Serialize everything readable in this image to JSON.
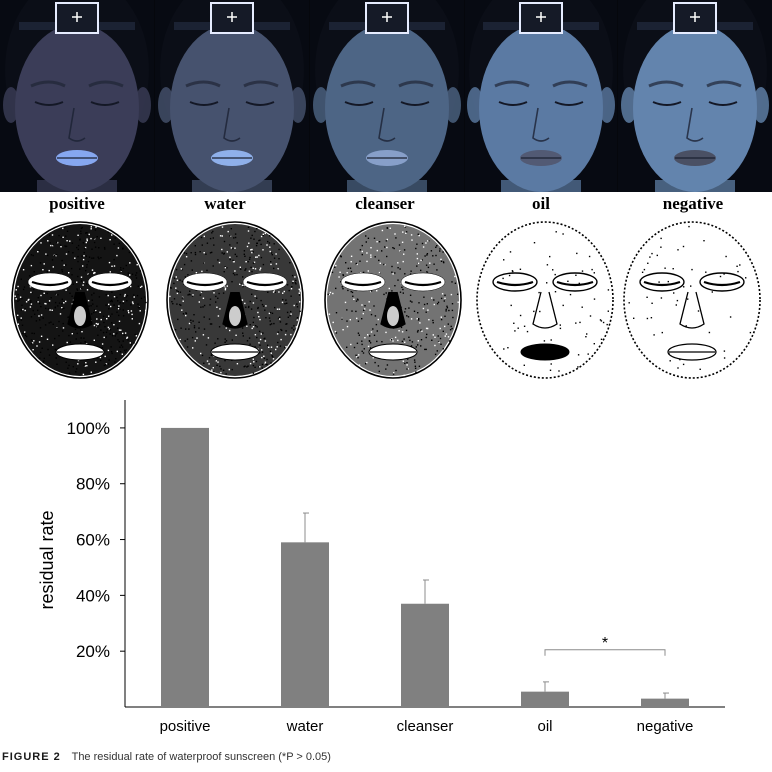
{
  "panels": [
    "positive",
    "water",
    "cleanser",
    "oil",
    "negative"
  ],
  "photo_tints": [
    "#3b3d58",
    "#46526e",
    "#4d6585",
    "#5b7aa3",
    "#6384ad"
  ],
  "photo_lips": [
    "#86a7f0",
    "#8fb0ea",
    "#879fc9",
    "#525a74",
    "#4a5064"
  ],
  "bw_darkness": [
    0.92,
    0.78,
    0.55,
    0.1,
    0.05
  ],
  "chart_data": {
    "type": "bar",
    "categories": [
      "positive",
      "water",
      "cleanser",
      "oil",
      "negative"
    ],
    "values": [
      100,
      59,
      37,
      5.5,
      3
    ],
    "errors": [
      0,
      10.5,
      8.5,
      3.5,
      2
    ],
    "ylabel": "residual rate",
    "ylim": [
      0,
      110
    ],
    "yticks": [
      20,
      40,
      60,
      80,
      100
    ],
    "ytick_labels": [
      "20%",
      "40%",
      "60%",
      "80%",
      "100%"
    ],
    "bar_color": "#808080",
    "annotation": {
      "text": "*",
      "between": [
        "oil",
        "negative"
      ]
    }
  },
  "caption": {
    "figure": "FIGURE 2",
    "text": "The residual rate of waterproof sunscreen (*P > 0.05)"
  }
}
